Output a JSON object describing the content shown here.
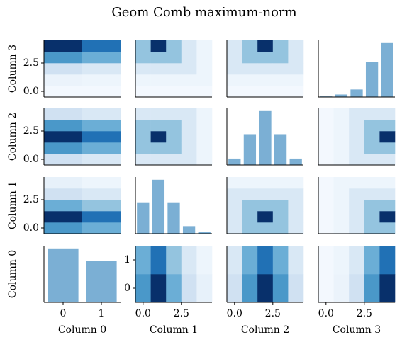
{
  "chart_data": {
    "type": "pair-grid",
    "title": "Geom Comb maximum-norm",
    "variables": [
      "Column 0",
      "Column 1",
      "Column 2",
      "Column 3"
    ],
    "axes": [
      {
        "lim": [
          -0.5,
          1.5
        ],
        "levels": [
          0,
          1
        ],
        "ticks": [
          0,
          1
        ]
      },
      {
        "lim": [
          -0.5,
          4.5
        ],
        "levels": [
          0,
          1,
          2,
          3,
          4
        ],
        "ticks": [
          {
            "value": 0,
            "label": "0.0"
          },
          {
            "value": 2.5,
            "label": "2.5"
          }
        ]
      },
      {
        "lim": [
          -0.5,
          4.5
        ],
        "levels": [
          0,
          1,
          2,
          3,
          4
        ],
        "ticks": [
          {
            "value": 0,
            "label": "0.0"
          },
          {
            "value": 2.5,
            "label": "2.5"
          }
        ]
      },
      {
        "lim": [
          -0.5,
          4.5
        ],
        "levels": [
          0,
          1,
          2,
          3,
          4
        ],
        "ticks": [
          {
            "value": 0,
            "label": "0.0"
          },
          {
            "value": 2.5,
            "label": "2.5"
          }
        ]
      }
    ],
    "bar_color": "#7bafd4",
    "cmap": "Blues",
    "marginals": [
      [
        1.0,
        0.77
      ],
      [
        2.5,
        4.3,
        2.5,
        0.6,
        0.15
      ],
      [
        0.5,
        2.4,
        4.2,
        2.4,
        0.5
      ],
      [
        0.05,
        0.2,
        0.6,
        2.8,
        4.3
      ]
    ],
    "joint": [
      {
        "vars": [
          0,
          1
        ],
        "z": [
          [
            0.6,
            1,
            0.5,
            0.2,
            0.08
          ],
          [
            0.5,
            0.75,
            0.4,
            0.15,
            0.05
          ]
        ]
      },
      {
        "vars": [
          0,
          2
        ],
        "z": [
          [
            0.2,
            0.6,
            1,
            0.6,
            0.2
          ],
          [
            0.15,
            0.5,
            0.75,
            0.5,
            0.15
          ]
        ]
      },
      {
        "vars": [
          0,
          3
        ],
        "z": [
          [
            0.02,
            0.06,
            0.2,
            0.6,
            1
          ],
          [
            0.02,
            0.05,
            0.15,
            0.5,
            0.75
          ]
        ]
      },
      {
        "vars": [
          1,
          2
        ],
        "z": [
          [
            0.15,
            0.4,
            0.4,
            0.4,
            0.15
          ],
          [
            0.15,
            0.4,
            1,
            0.4,
            0.15
          ],
          [
            0.15,
            0.4,
            0.4,
            0.4,
            0.15
          ],
          [
            0.15,
            0.15,
            0.15,
            0.15,
            0.15
          ],
          [
            0.05,
            0.05,
            0.05,
            0.05,
            0.05
          ]
        ]
      },
      {
        "vars": [
          1,
          3
        ],
        "z": [
          [
            0.02,
            0.05,
            0.15,
            0.4,
            0.4
          ],
          [
            0.02,
            0.05,
            0.15,
            0.4,
            1
          ],
          [
            0.02,
            0.05,
            0.15,
            0.4,
            0.4
          ],
          [
            0.02,
            0.05,
            0.15,
            0.15,
            0.15
          ],
          [
            0.02,
            0.05,
            0.05,
            0.05,
            0.05
          ]
        ]
      },
      {
        "vars": [
          2,
          3
        ],
        "z": [
          [
            0.02,
            0.05,
            0.15,
            0.15,
            0.15
          ],
          [
            0.02,
            0.05,
            0.15,
            0.4,
            0.4
          ],
          [
            0.02,
            0.05,
            0.15,
            0.4,
            1
          ],
          [
            0.02,
            0.05,
            0.15,
            0.4,
            0.4
          ],
          [
            0.02,
            0.05,
            0.15,
            0.15,
            0.15
          ]
        ]
      }
    ]
  }
}
